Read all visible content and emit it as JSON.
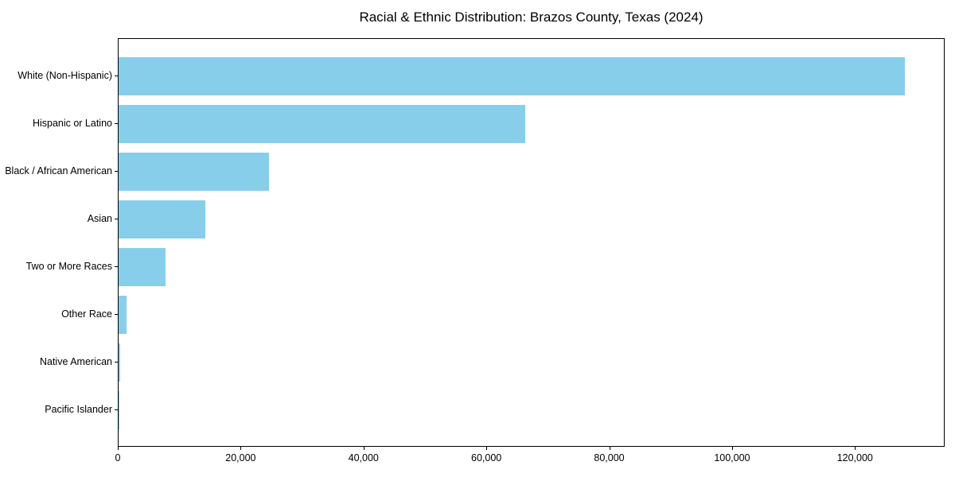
{
  "chart_data": {
    "type": "bar",
    "orientation": "horizontal",
    "title": "Racial & Ethnic Distribution: Brazos County, Texas (2024)",
    "categories": [
      "White (Non-Hispanic)",
      "Hispanic or Latino",
      "Black / African American",
      "Asian",
      "Two or More Races",
      "Other Race",
      "Native American",
      "Pacific Islander"
    ],
    "values": [
      128200,
      66300,
      24500,
      14200,
      7600,
      1300,
      300,
      100
    ],
    "bar_color": "#87CEEB",
    "xlabel": "",
    "ylabel": "",
    "xlim": [
      0,
      134600
    ],
    "xticks": [
      {
        "value": 0,
        "label": "0"
      },
      {
        "value": 20000,
        "label": "20,000"
      },
      {
        "value": 40000,
        "label": "40,000"
      },
      {
        "value": 60000,
        "label": "60,000"
      },
      {
        "value": 80000,
        "label": "80,000"
      },
      {
        "value": 100000,
        "label": "100,000"
      },
      {
        "value": 120000,
        "label": "120,000"
      }
    ],
    "grid": false,
    "legend": null
  }
}
